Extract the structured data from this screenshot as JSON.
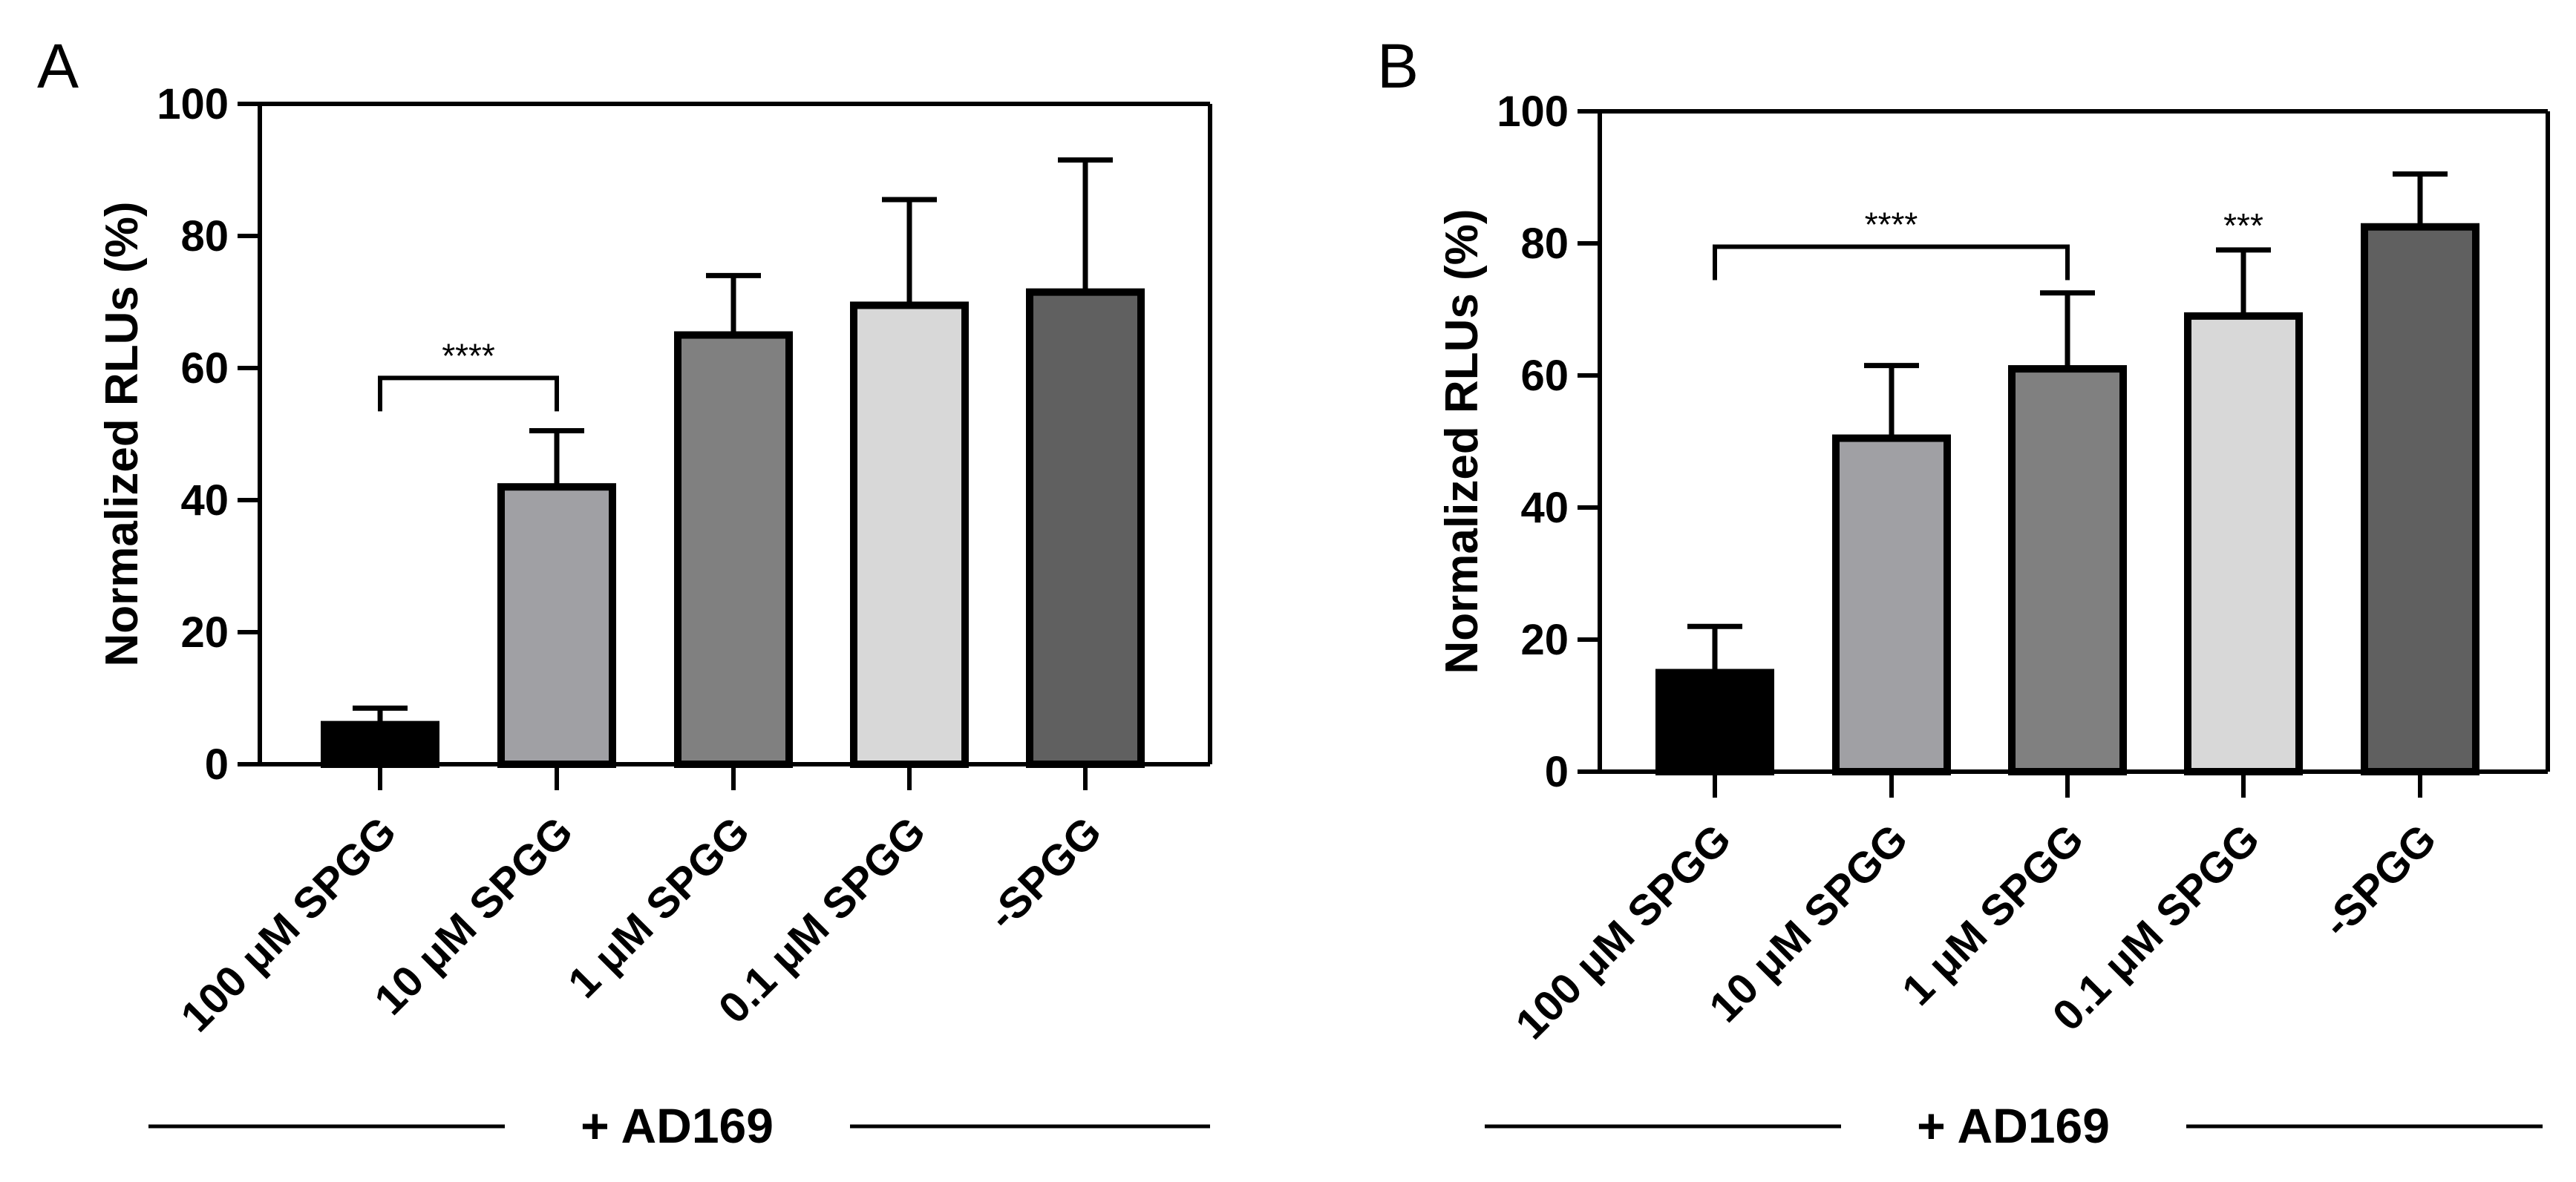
{
  "chart_data": [
    {
      "panel": "A",
      "type": "bar",
      "categories": [
        "100 μM SPGG",
        "10 μM SPGG",
        "1 μM SPGG",
        "0.1 μM SPGG",
        "-SPGG"
      ],
      "values": [
        6,
        42,
        65,
        69.5,
        71.5
      ],
      "errors": [
        2.5,
        8.5,
        9,
        16,
        20
      ],
      "colors": [
        "#000000",
        "#a0a0a4",
        "#808080",
        "#d8d8d8",
        "#606060"
      ],
      "ylabel": "Normalized RLUs (%)",
      "ylim": [
        0,
        100
      ],
      "yticks": [
        0,
        20,
        40,
        60,
        80,
        100
      ],
      "group_label": "+ AD169",
      "significance": [
        {
          "label": "****",
          "from": 0,
          "to": 1,
          "y": 58.5
        }
      ]
    },
    {
      "panel": "B",
      "type": "bar",
      "categories": [
        "100 μM SPGG",
        "10 μM SPGG",
        "1 μM SPGG",
        "0.1 μM SPGG",
        "-SPGG"
      ],
      "values": [
        15,
        50.5,
        61,
        69,
        82.5
      ],
      "errors": [
        7,
        11,
        11.5,
        10,
        8
      ],
      "colors": [
        "#000000",
        "#a0a0a4",
        "#808080",
        "#d8d8d8",
        "#606060"
      ],
      "ylabel": "Normalized RLUs (%)",
      "ylim": [
        0,
        100
      ],
      "yticks": [
        0,
        20,
        40,
        60,
        80,
        100
      ],
      "group_label": "+ AD169",
      "significance": [
        {
          "label": "****",
          "from": 0,
          "to": 2,
          "y": 79.5
        },
        {
          "label": "***",
          "at": 3,
          "y": 82
        }
      ]
    }
  ]
}
